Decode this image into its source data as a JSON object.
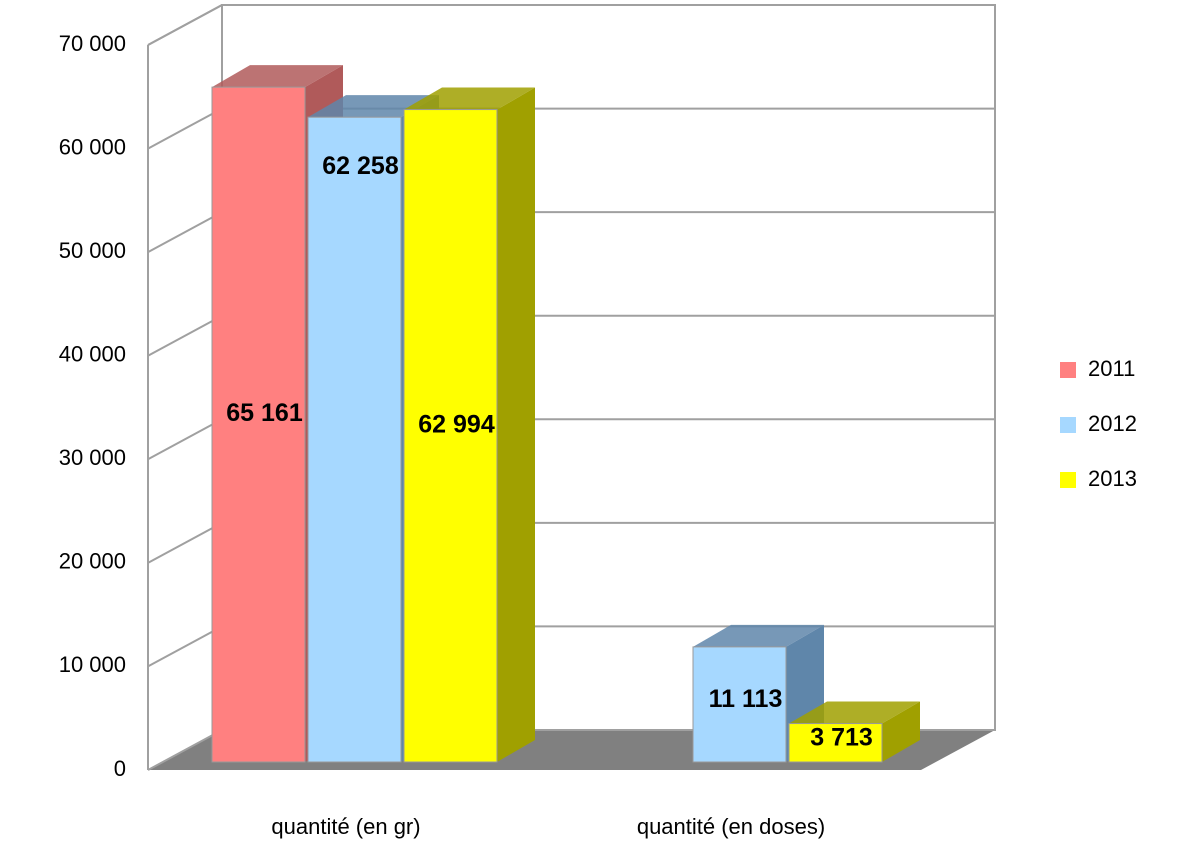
{
  "chart_data": {
    "type": "bar3d",
    "categories": [
      "quantité (en gr)",
      "quantité (en doses)"
    ],
    "series": [
      {
        "name": "2011",
        "color": "#ff8080",
        "side": "#b05a5a",
        "values": [
          65161,
          null
        ],
        "value_labels": [
          "65 161",
          null
        ]
      },
      {
        "name": "2012",
        "color": "#a6d8ff",
        "side": "#5f86aa",
        "values": [
          62258,
          11113
        ],
        "value_labels": [
          "62 258",
          "11 113"
        ]
      },
      {
        "name": "2013",
        "color": "#ffff00",
        "side": "#a0a000",
        "values": [
          62994,
          3713
        ],
        "value_labels": [
          "62 994",
          "3 713"
        ]
      }
    ],
    "ylim": [
      0,
      70000
    ],
    "yticks": [
      0,
      {
        "value": 10000,
        "label": "10 000"
      },
      {
        "value": 20000,
        "label": "20 000"
      },
      {
        "value": 30000,
        "label": "30 000"
      },
      {
        "value": 40000,
        "label": "40 000"
      },
      {
        "value": 50000,
        "label": "50 000"
      },
      {
        "value": 60000,
        "label": "60 000"
      },
      {
        "value": 70000,
        "label": "70 000"
      }
    ],
    "grid": true,
    "legend": "right"
  }
}
